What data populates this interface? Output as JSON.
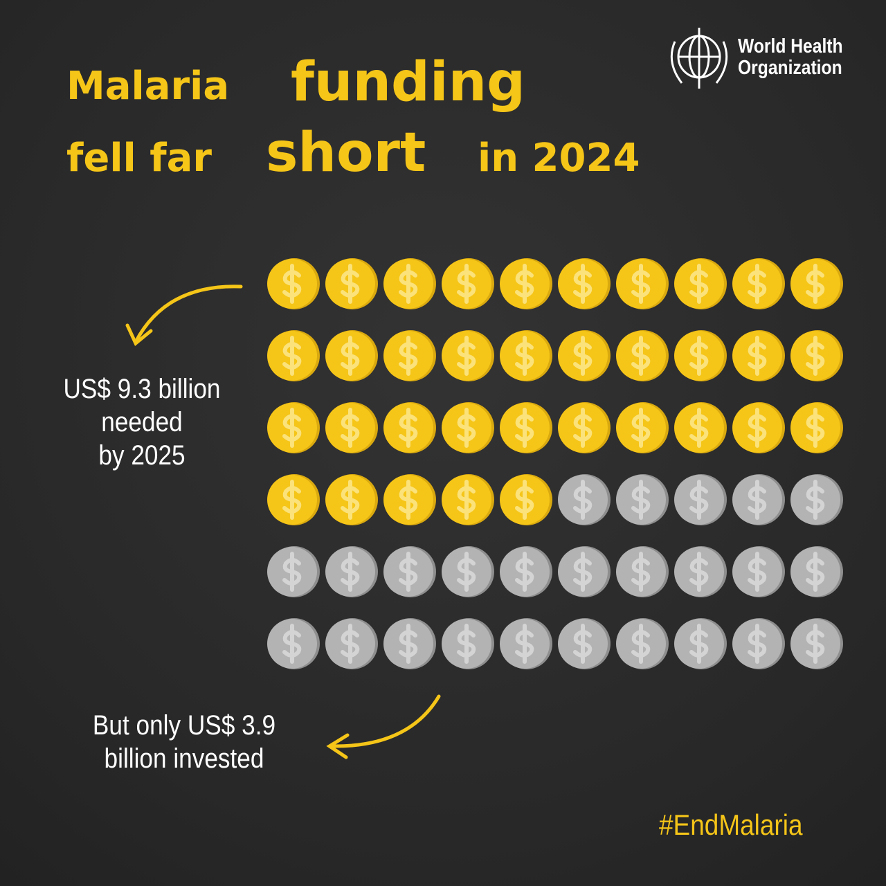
{
  "title": {
    "parts": [
      "Malaria",
      "funding",
      "fell far",
      "short",
      "in 2024"
    ]
  },
  "logo": {
    "lines": [
      "World Health",
      "Organization"
    ]
  },
  "needed_note": {
    "lines": [
      "US$ 9.3 billion",
      "needed",
      "by 2025"
    ]
  },
  "invested_note": {
    "lines": [
      "But only US$ 3.9",
      "billion invested"
    ]
  },
  "hashtag": "#EndMalaria"
}
